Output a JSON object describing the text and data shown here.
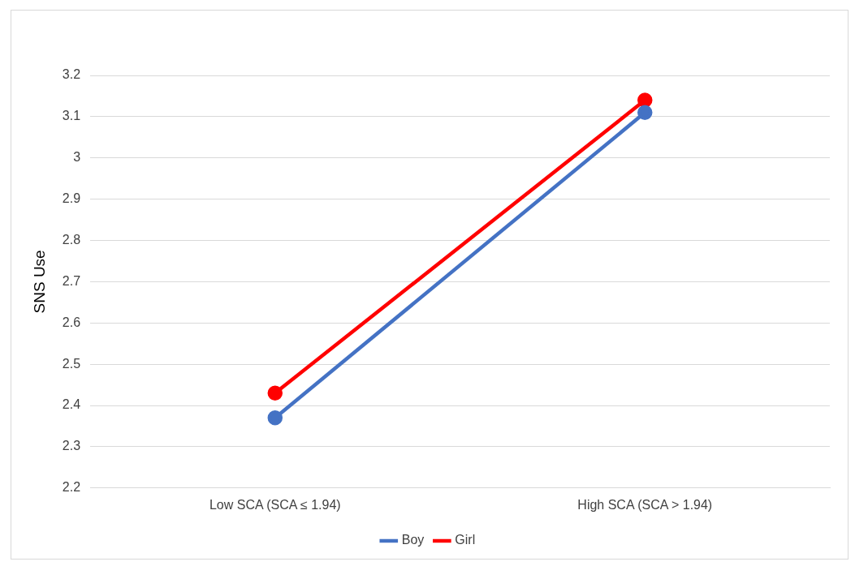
{
  "chart_data": {
    "type": "line",
    "ylabel": "SNS Use",
    "categories": [
      "Low SCA (SCA ≤ 1.94)",
      "High SCA (SCA > 1.94)"
    ],
    "series": [
      {
        "name": "Boy",
        "color": "#4472c4",
        "values": [
          2.37,
          3.11
        ]
      },
      {
        "name": "Girl",
        "color": "#ff0000",
        "values": [
          2.43,
          3.14
        ]
      }
    ],
    "ylim": [
      2.2,
      3.2
    ],
    "yticks": [
      2.2,
      2.3,
      2.4,
      2.5,
      2.6,
      2.7,
      2.8,
      2.9,
      3,
      3.1,
      3.2
    ],
    "grid": "y",
    "legend": "bottom",
    "marker": "circle",
    "line_style": "solid"
  }
}
